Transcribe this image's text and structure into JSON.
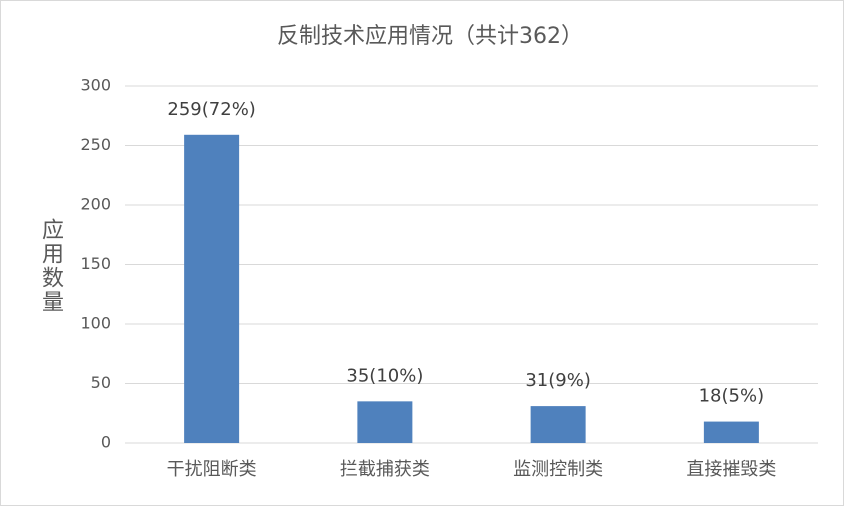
{
  "chart_data": {
    "type": "bar",
    "title": "反制技术应用情况（共计362）",
    "y_label": "应用数量",
    "categories": [
      "干扰阻断类",
      "拦截捕获类",
      "监测控制类",
      "直接摧毁类"
    ],
    "values": [
      259,
      35,
      31,
      18
    ],
    "value_labels": [
      "259(72%)",
      "35(10%)",
      "31(9%)",
      "18(5%)"
    ],
    "color": "#4f81bd",
    "ylim": [
      0,
      300
    ],
    "yticks": [
      0,
      50,
      100,
      150,
      200,
      250,
      300
    ],
    "grid": true
  }
}
